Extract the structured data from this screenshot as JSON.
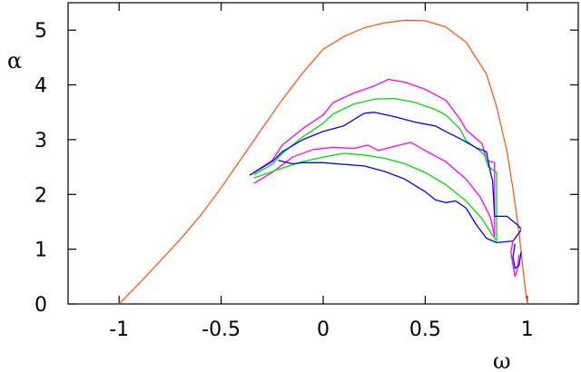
{
  "chart_data": {
    "type": "line",
    "title": "",
    "xlabel": "ω",
    "ylabel": "α",
    "xlim": [
      -1.25,
      1.25
    ],
    "ylim": [
      0,
      5.5
    ],
    "xticks": [
      -1,
      -0.5,
      0,
      0.5,
      1
    ],
    "xtick_labels": [
      "-1",
      "-0.5",
      "0",
      "0.5",
      "1"
    ],
    "yticks": [
      0,
      1,
      2,
      3,
      4,
      5
    ],
    "ytick_labels": [
      "0",
      "1",
      "2",
      "3",
      "4",
      "5"
    ],
    "grid": false,
    "legend": "none",
    "series": [
      {
        "color": "#ff5a1e",
        "points": [
          [
            -1,
            0
          ],
          [
            -0.9,
            0.38
          ],
          [
            -0.8,
            0.78
          ],
          [
            -0.7,
            1.18
          ],
          [
            -0.6,
            1.62
          ],
          [
            -0.5,
            2.12
          ],
          [
            -0.4,
            2.66
          ],
          [
            -0.3,
            3.2
          ],
          [
            -0.2,
            3.73
          ],
          [
            -0.1,
            4.22
          ],
          [
            0,
            4.65
          ],
          [
            0.1,
            4.88
          ],
          [
            0.2,
            5.04
          ],
          [
            0.3,
            5.13
          ],
          [
            0.4,
            5.18
          ],
          [
            0.5,
            5.17
          ],
          [
            0.6,
            5.06
          ],
          [
            0.7,
            4.78
          ],
          [
            0.8,
            4.2
          ],
          [
            0.85,
            3.6
          ],
          [
            0.9,
            2.8
          ],
          [
            0.93,
            2.1
          ],
          [
            0.96,
            1.3
          ],
          [
            0.98,
            0.6
          ],
          [
            1,
            0
          ]
        ]
      },
      {
        "color": "#ff00ff",
        "points": [
          [
            -0.34,
            2.4
          ],
          [
            -0.25,
            2.62
          ],
          [
            -0.2,
            2.9
          ],
          [
            -0.1,
            3.2
          ],
          [
            0,
            3.45
          ],
          [
            0.05,
            3.68
          ],
          [
            0.15,
            3.85
          ],
          [
            0.25,
            3.98
          ],
          [
            0.32,
            4.1
          ],
          [
            0.4,
            4.05
          ],
          [
            0.5,
            3.92
          ],
          [
            0.6,
            3.72
          ],
          [
            0.67,
            3.38
          ],
          [
            0.7,
            3.18
          ],
          [
            0.75,
            3.02
          ],
          [
            0.78,
            2.92
          ],
          [
            0.8,
            2.62
          ],
          [
            0.84,
            2.58
          ],
          [
            0.84,
            1.25
          ]
        ]
      },
      {
        "color": "#00e000",
        "points": [
          [
            -0.34,
            2.36
          ],
          [
            -0.25,
            2.55
          ],
          [
            -0.2,
            2.75
          ],
          [
            -0.1,
            3.05
          ],
          [
            0,
            3.3
          ],
          [
            0.05,
            3.47
          ],
          [
            0.15,
            3.65
          ],
          [
            0.25,
            3.74
          ],
          [
            0.35,
            3.75
          ],
          [
            0.45,
            3.68
          ],
          [
            0.55,
            3.55
          ],
          [
            0.6,
            3.45
          ],
          [
            0.67,
            3.2
          ],
          [
            0.7,
            2.98
          ],
          [
            0.75,
            2.85
          ],
          [
            0.79,
            2.72
          ],
          [
            0.81,
            2.5
          ],
          [
            0.85,
            2.4
          ],
          [
            0.85,
            1.15
          ]
        ]
      },
      {
        "color": "#0000ff",
        "points": [
          [
            -0.36,
            2.35
          ],
          [
            -0.25,
            2.6
          ],
          [
            -0.2,
            2.78
          ],
          [
            -0.1,
            3.0
          ],
          [
            0,
            3.15
          ],
          [
            0.1,
            3.25
          ],
          [
            0.2,
            3.48
          ],
          [
            0.25,
            3.5
          ],
          [
            0.35,
            3.42
          ],
          [
            0.45,
            3.32
          ],
          [
            0.55,
            3.25
          ],
          [
            0.6,
            3.15
          ],
          [
            0.68,
            3.0
          ],
          [
            0.75,
            2.85
          ],
          [
            0.8,
            2.78
          ],
          [
            0.82,
            2.4
          ],
          [
            0.83,
            2.25
          ],
          [
            0.84,
            1.6
          ],
          [
            0.9,
            1.6
          ],
          [
            0.95,
            1.45
          ],
          [
            0.97,
            1.37
          ]
        ]
      },
      {
        "color": "#ff00ff",
        "points": [
          [
            -0.34,
            2.2
          ],
          [
            -0.25,
            2.4
          ],
          [
            -0.15,
            2.68
          ],
          [
            -0.05,
            2.82
          ],
          [
            0.05,
            2.86
          ],
          [
            0.15,
            2.84
          ],
          [
            0.22,
            2.9
          ],
          [
            0.27,
            2.8
          ],
          [
            0.35,
            2.88
          ],
          [
            0.43,
            2.95
          ],
          [
            0.5,
            2.8
          ],
          [
            0.6,
            2.6
          ],
          [
            0.7,
            2.28
          ],
          [
            0.77,
            1.95
          ],
          [
            0.82,
            1.58
          ],
          [
            0.84,
            1.22
          ]
        ]
      },
      {
        "color": "#00e000",
        "points": [
          [
            -0.34,
            2.3
          ],
          [
            -0.2,
            2.48
          ],
          [
            -0.1,
            2.6
          ],
          [
            0,
            2.68
          ],
          [
            0.1,
            2.75
          ],
          [
            0.2,
            2.72
          ],
          [
            0.3,
            2.66
          ],
          [
            0.4,
            2.56
          ],
          [
            0.5,
            2.4
          ],
          [
            0.6,
            2.18
          ],
          [
            0.7,
            1.88
          ],
          [
            0.78,
            1.55
          ],
          [
            0.83,
            1.25
          ],
          [
            0.85,
            1.15
          ]
        ]
      },
      {
        "color": "#0000ff",
        "points": [
          [
            -0.22,
            2.62
          ],
          [
            -0.15,
            2.56
          ],
          [
            -0.1,
            2.58
          ],
          [
            0,
            2.58
          ],
          [
            0.1,
            2.55
          ],
          [
            0.2,
            2.52
          ],
          [
            0.3,
            2.42
          ],
          [
            0.4,
            2.28
          ],
          [
            0.5,
            2.05
          ],
          [
            0.55,
            1.9
          ],
          [
            0.6,
            1.85
          ],
          [
            0.65,
            1.88
          ],
          [
            0.7,
            1.75
          ],
          [
            0.75,
            1.45
          ],
          [
            0.8,
            1.2
          ],
          [
            0.85,
            1.12
          ],
          [
            0.93,
            1.15
          ],
          [
            0.97,
            1.35
          ]
        ]
      },
      {
        "color": "#ff00ff",
        "points": [
          [
            0.93,
            1.15
          ],
          [
            0.92,
            0.95
          ],
          [
            0.93,
            0.7
          ],
          [
            0.94,
            0.5
          ],
          [
            0.95,
            0.6
          ],
          [
            0.96,
            0.9
          ]
        ]
      },
      {
        "color": "#0000ff",
        "points": [
          [
            0.94,
            1.1
          ],
          [
            0.93,
            0.85
          ],
          [
            0.94,
            0.65
          ],
          [
            0.96,
            0.7
          ],
          [
            0.97,
            0.95
          ]
        ]
      }
    ]
  }
}
